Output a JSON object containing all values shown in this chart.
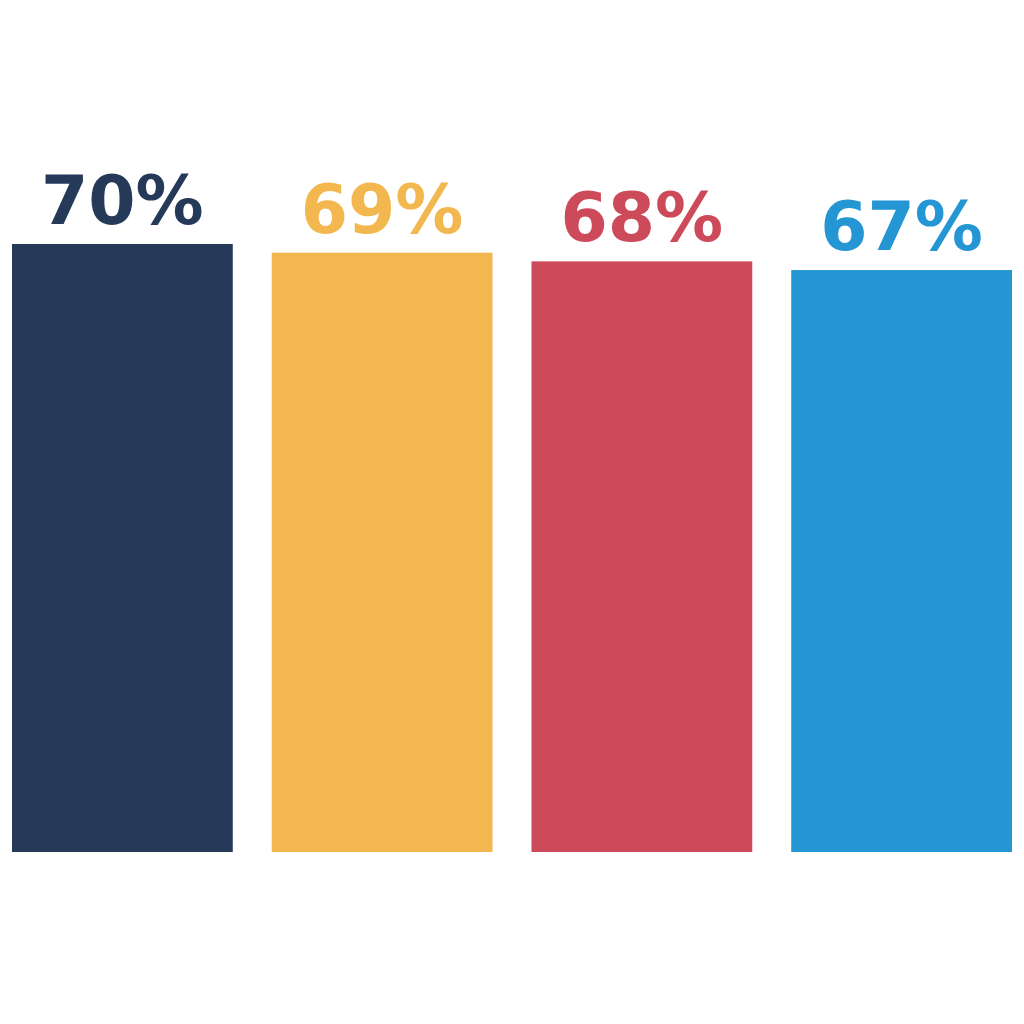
{
  "chart_data": {
    "type": "bar",
    "categories": [
      null,
      null,
      null,
      null
    ],
    "values": [
      70,
      69,
      68,
      67
    ],
    "value_labels": [
      "70%",
      "69%",
      "68%",
      "67%"
    ],
    "colors": [
      "#253a59",
      "#f3b74f",
      "#cc4a5a",
      "#2596d4"
    ]
  }
}
